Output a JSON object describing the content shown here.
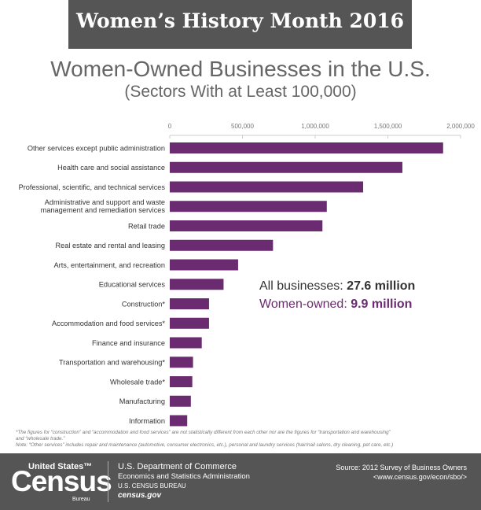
{
  "banner": {
    "title": "Women’s History Month 2016"
  },
  "header": {
    "title": "Women-Owned Businesses in the U.S.",
    "subtitle": "(Sectors With at Least 100,000)"
  },
  "colors": {
    "bar": "#6b2b70",
    "banner": "#555555",
    "women_text": "#6b2b70"
  },
  "chart_data": {
    "type": "bar",
    "orientation": "horizontal",
    "categories": [
      "Other services except public administration",
      "Health care and social assistance",
      "Professional, scientific, and technical services",
      "Administrative and support and waste management and remediation services",
      "Retail trade",
      "Real estate and rental and leasing",
      "Arts, entertainment, and recreation",
      "Educational services",
      "Construction*",
      "Accommodation and food services*",
      "Finance and insurance",
      "Transportation and warehousing*",
      "Wholesale trade*",
      "Manufacturing",
      "Information"
    ],
    "values": [
      1880000,
      1600000,
      1330000,
      1080000,
      1050000,
      710000,
      470000,
      370000,
      270000,
      270000,
      220000,
      160000,
      155000,
      145000,
      120000
    ],
    "xlim": [
      0,
      2000000
    ],
    "xticks": [
      "0",
      "500,000",
      "1,000,000",
      "1,500,000",
      "2,000,000"
    ],
    "grid": false
  },
  "summary": {
    "all_label": "All businesses: ",
    "all_value": "27.6 million",
    "women_label": "Women-owned: ",
    "women_value": "9.9 million"
  },
  "notes": {
    "line1": "*The figures for “construction” and “accommodation and food services” are not statistically different from each other nor are the figures for “transportation and warehousing”",
    "line2": "and “wholesale trade.”",
    "line3": "Note: “Other services” includes repair and maintenance (automotive, consumer electronics, etc.), personal and laundry services (hair/nail salons, dry cleaning, pet care, etc.)"
  },
  "footer": {
    "logo_top": "United States™",
    "logo_main": "Census",
    "logo_bureau": "Bureau",
    "dept": "U.S. Department of Commerce",
    "esa": "Economics and Statistics Administration",
    "bureau": "U.S. CENSUS BUREAU",
    "site": "census.gov",
    "source": "Source: 2012 Survey of Business Owners",
    "url": "<www.census.gov/econ/sbo/>"
  }
}
